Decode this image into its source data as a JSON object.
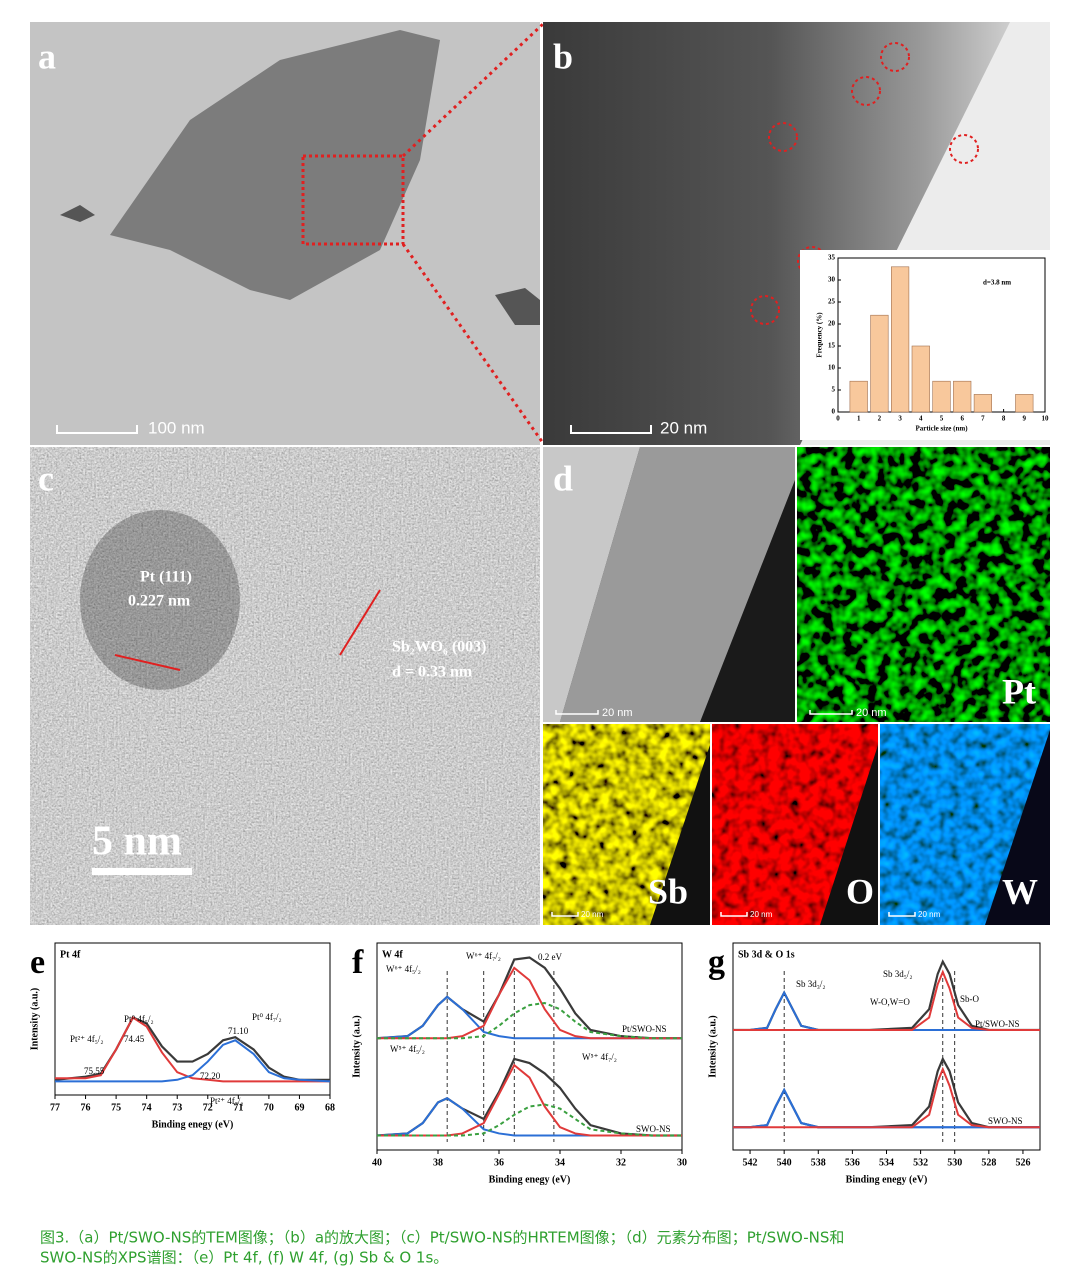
{
  "panels": {
    "a": {
      "label": "a",
      "scale_bar": "100 nm"
    },
    "b": {
      "label": "b",
      "scale_bar": "20 nm"
    },
    "c": {
      "label": "c",
      "annotations": [
        "Pt (111)",
        "0.227 nm",
        "Sb₂WO₆ (003)",
        "d = 0.33 nm"
      ],
      "scale_bar": "5 nm"
    },
    "d": {
      "label": "d",
      "scale_bars": [
        "20 nm",
        "20 nm",
        "20 nm",
        "20 nm",
        "20 nm"
      ],
      "elements": [
        "Pt",
        "Sb",
        "O",
        "W"
      ]
    }
  },
  "chart_data": [
    {
      "type": "bar",
      "x": [
        1,
        2,
        3,
        4,
        5,
        6,
        7,
        9
      ],
      "values": [
        7,
        22,
        33,
        15,
        7,
        7,
        4,
        4
      ],
      "color": "#f8c89c",
      "xlim": [
        0,
        10
      ],
      "xticks": [
        0,
        1,
        2,
        3,
        4,
        5,
        6,
        7,
        8,
        9,
        10
      ],
      "ylim": [
        0,
        35
      ],
      "yticks": [
        0,
        5,
        10,
        15,
        20,
        25,
        30,
        35
      ],
      "xlabel": "Particle size (nm)",
      "ylabel": "Frequency (%)",
      "annotation": "d=3.8 nm"
    },
    {
      "type": "line",
      "panel_label": "e",
      "title": "Pt 4f",
      "xlabel": "Binding enegy (eV)",
      "ylabel": "Intensity (a.u.)",
      "x": [
        77,
        76,
        75.5,
        75,
        74.45,
        74,
        73.5,
        73,
        72.5,
        72,
        71.5,
        71.1,
        70.5,
        70,
        69.5,
        69,
        68
      ],
      "xlim": [
        77,
        68
      ],
      "xticks": [
        77,
        76,
        75,
        74,
        73,
        72,
        71,
        70,
        69,
        68
      ],
      "ylim": [
        0,
        100
      ],
      "series": [
        {
          "color": "#3a3a3a",
          "values": [
            10,
            12,
            14,
            30,
            51,
            47,
            32,
            22,
            22,
            27,
            36,
            38,
            30,
            18,
            12,
            10,
            10
          ]
        },
        {
          "color": "#e03a3a",
          "values": [
            11,
            11,
            13,
            30,
            51,
            45,
            28,
            15,
            11,
            10,
            9,
            9,
            9,
            9,
            9,
            9,
            9
          ]
        },
        {
          "color": "#2b6fd6",
          "values": [
            9,
            9,
            9,
            9,
            9,
            9,
            9,
            10,
            13,
            22,
            33,
            36,
            27,
            15,
            11,
            10,
            9
          ]
        }
      ],
      "annotations": [
        "Pt²⁺ 4f₅/₂",
        "74.45",
        "Pt⁰ 4f₅/₂",
        "75.55",
        "71.10",
        "Pt⁰ 4f₇/₂",
        "72.20",
        "Pt²⁺ 4f₇/₂"
      ]
    },
    {
      "type": "line",
      "panel_label": "f",
      "title": "W 4f",
      "xlabel": "Binding enegy (eV)",
      "ylabel": "Intensity (a.u.)",
      "x": [
        40,
        39,
        38.5,
        38,
        37.7,
        37.2,
        36.5,
        36,
        35.5,
        35,
        34.5,
        34,
        33.5,
        33,
        32,
        31,
        30
      ],
      "xlim": [
        40,
        30
      ],
      "xticks": [
        40,
        38,
        36,
        34,
        32,
        30
      ],
      "ylim": [
        0,
        100
      ],
      "ref_lines": [
        37.7,
        36.5,
        35.5,
        34.2
      ],
      "series": [
        {
          "color": "#3a3a3a",
          "values": [
            54,
            55,
            60,
            70,
            74,
            68,
            62,
            75,
            92,
            93,
            88,
            78,
            66,
            58,
            55,
            54,
            54
          ]
        },
        {
          "color": "#2b6fd6",
          "values": [
            54,
            55,
            60,
            70,
            74,
            68,
            57,
            55,
            54,
            54,
            54,
            54,
            54,
            54,
            54,
            54,
            54
          ]
        },
        {
          "color": "#e03a3a",
          "values": [
            54,
            54,
            54,
            54,
            54,
            55,
            60,
            75,
            88,
            82,
            68,
            58,
            55,
            54,
            54,
            54,
            54
          ]
        },
        {
          "color": "#3aa040",
          "dashed": true,
          "values": [
            54,
            54,
            54,
            54,
            54,
            54,
            55,
            60,
            66,
            70,
            71,
            68,
            62,
            57,
            55,
            54,
            54
          ]
        },
        {
          "color": "#3a3a3a",
          "values": [
            7,
            8,
            13,
            23,
            25,
            20,
            15,
            28,
            44,
            42,
            37,
            30,
            20,
            12,
            8,
            7,
            7
          ]
        },
        {
          "color": "#2b6fd6",
          "values": [
            7,
            8,
            13,
            23,
            25,
            20,
            10,
            8,
            7,
            7,
            7,
            7,
            7,
            7,
            7,
            7,
            7
          ]
        },
        {
          "color": "#e03a3a",
          "values": [
            7,
            7,
            7,
            7,
            7,
            8,
            13,
            27,
            41,
            35,
            21,
            11,
            8,
            7,
            7,
            7,
            7
          ]
        },
        {
          "color": "#3aa040",
          "dashed": true,
          "values": [
            7,
            7,
            7,
            7,
            7,
            7,
            8,
            12,
            17,
            21,
            22,
            20,
            15,
            10,
            8,
            7,
            7
          ]
        }
      ],
      "annotations": [
        "W⁶⁺ 4f₅/₂",
        "W⁶⁺ 4f₇/₂",
        "0.2 eV",
        "W⁵⁺ 4f₅/₂",
        "W⁵⁺ 4f₇/₂",
        "Pt/SWO-NS",
        "SWO-NS"
      ]
    },
    {
      "type": "line",
      "panel_label": "g",
      "title": "Sb 3d & O 1s",
      "xlabel": "Binding enegy (eV)",
      "ylabel": "Intensity (a.u.)",
      "x": [
        543,
        542,
        541,
        540.5,
        540,
        539.5,
        539,
        538,
        535,
        532.5,
        531.5,
        531,
        530.7,
        530.3,
        529.8,
        529,
        528,
        525
      ],
      "xlim": [
        543,
        525
      ],
      "xticks": [
        542,
        540,
        538,
        536,
        534,
        532,
        530,
        528,
        526
      ],
      "ylim": [
        0,
        100
      ],
      "ref_lines": [
        540,
        530.7,
        530
      ],
      "series": [
        {
          "color": "#3a3a3a",
          "values": [
            58,
            58,
            59,
            68,
            76,
            68,
            60,
            58,
            58,
            59,
            68,
            85,
            91,
            85,
            70,
            60,
            58,
            58
          ]
        },
        {
          "color": "#2b6fd6",
          "values": [
            58,
            58,
            59,
            68,
            76,
            68,
            60,
            58,
            58,
            58,
            58,
            58,
            58,
            58,
            58,
            58,
            58,
            58
          ]
        },
        {
          "color": "#e03a3a",
          "values": [
            58,
            58,
            58,
            58,
            58,
            58,
            58,
            58,
            58,
            58,
            64,
            80,
            86,
            78,
            64,
            59,
            58,
            58
          ]
        },
        {
          "color": "#3a3a3a",
          "values": [
            11,
            11,
            12,
            21,
            29,
            21,
            13,
            11,
            11,
            12,
            21,
            38,
            44,
            38,
            23,
            13,
            11,
            11
          ]
        },
        {
          "color": "#2b6fd6",
          "values": [
            11,
            11,
            12,
            21,
            29,
            21,
            13,
            11,
            11,
            11,
            11,
            11,
            11,
            11,
            11,
            11,
            11,
            11
          ]
        },
        {
          "color": "#e03a3a",
          "values": [
            11,
            11,
            11,
            11,
            11,
            11,
            11,
            11,
            11,
            11,
            17,
            33,
            39,
            31,
            17,
            12,
            11,
            11
          ]
        }
      ],
      "annotations": [
        "Sb 3d₃/₂",
        "Sb 3d₅/₂",
        "W-O,W=O",
        "Sb-O",
        "Pt/SWO-NS",
        "SWO-NS"
      ]
    }
  ],
  "caption": [
    "图3.（a）Pt/SWO-NS的TEM图像；（b）a的放大图；（c）Pt/SWO-NS的HRTEM图像；（d）元素分布图；Pt/SWO-NS和",
    "SWO-NS的XPS谱图：（e）Pt 4f, (f) W 4f, (g) Sb & O 1s。"
  ]
}
